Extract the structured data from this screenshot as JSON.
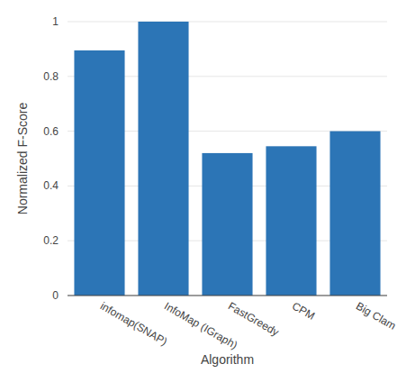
{
  "chart_data": {
    "type": "bar",
    "x_label": "Algorithm",
    "y_label": "Normalized F-Score",
    "categories": [
      "infomap(SNAP)",
      "InfoMap (IGraph)",
      "FastGreedy",
      "CPM",
      "Big Clam"
    ],
    "values": [
      0.895,
      1.0,
      0.52,
      0.545,
      0.6
    ],
    "color": "#2c75b6",
    "ylim": [
      0,
      1
    ],
    "yticks": [
      0,
      0.2,
      0.4,
      0.6,
      0.8,
      1
    ],
    "grid": true
  }
}
